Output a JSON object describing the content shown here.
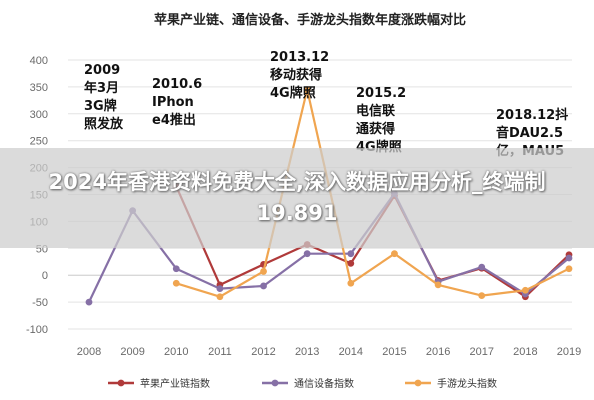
{
  "chart_data": {
    "type": "line",
    "title": "苹果产业链、通信设备、手游龙头指数年度涨跌幅对比",
    "x": [
      "2008",
      "2009",
      "2010",
      "2011",
      "2012",
      "2013",
      "2014",
      "2015",
      "2016",
      "2017",
      "2018",
      "2019"
    ],
    "y_ticks": [
      "400",
      "350",
      "300",
      "250",
      "200",
      "150",
      "100",
      "50",
      "0",
      "-50",
      "-100"
    ],
    "ylim": [
      -100,
      400
    ],
    "grid": "horizontal",
    "legend_position": "bottom",
    "series": [
      {
        "name": "苹果产业链指数",
        "color": "#b03a3a",
        "values": [
          null,
          null,
          165,
          -18,
          20,
          57,
          22,
          148,
          -10,
          13,
          -40,
          38
        ]
      },
      {
        "name": "通信设备指数",
        "color": "#8670a6",
        "values": [
          -50,
          120,
          12,
          -25,
          -20,
          40,
          40,
          152,
          -12,
          15,
          -35,
          32
        ]
      },
      {
        "name": "手游龙头指数",
        "color": "#f0a550",
        "values": [
          null,
          null,
          -15,
          -40,
          7,
          345,
          -15,
          40,
          -18,
          -38,
          -28,
          12
        ]
      }
    ],
    "annotations": [
      {
        "lines": [
          "2009",
          "年3月",
          "3G牌",
          "照发放"
        ]
      },
      {
        "lines": [
          "2010.6",
          "IPhon",
          "e4推出"
        ]
      },
      {
        "lines": [
          "2013.12",
          "移动获得",
          "4G牌照"
        ]
      },
      {
        "lines": [
          "2015.2",
          "电信联",
          "通获得",
          "4G牌照"
        ]
      },
      {
        "lines": [
          "2018.12抖",
          "音DAU2.5",
          "亿，MAU5"
        ]
      }
    ]
  },
  "overlay": {
    "text": "2024年香港资料免费大全,深入数据应用分析_终端制19.891"
  }
}
